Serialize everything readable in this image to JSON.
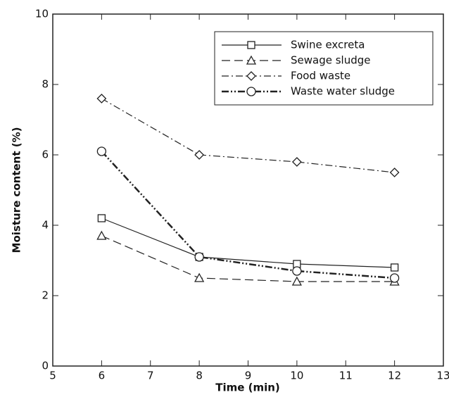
{
  "chart_data": {
    "type": "line",
    "x_label": "Time (min)",
    "y_label": "Moisture content (%)",
    "x": [
      6,
      8,
      10,
      12
    ],
    "series": [
      {
        "name": "Swine excreta",
        "color": "#222222",
        "marker": "square",
        "dash": "solid",
        "values": [
          4.2,
          3.1,
          2.9,
          2.8
        ]
      },
      {
        "name": "Sewage sludge",
        "color": "#222222",
        "marker": "triangle",
        "dash": "dashed",
        "values": [
          3.7,
          2.5,
          2.4,
          2.4
        ]
      },
      {
        "name": "Food waste",
        "color": "#222222",
        "marker": "diamond",
        "dash": "dashdot",
        "values": [
          7.6,
          6.0,
          5.8,
          5.5
        ]
      },
      {
        "name": "Waste water sludge",
        "color": "#222222",
        "marker": "circle",
        "dash": "dashdotdot",
        "values": [
          6.1,
          3.1,
          2.7,
          2.5
        ]
      }
    ],
    "xlim": [
      5,
      13
    ],
    "xticks": [
      5,
      6,
      7,
      8,
      9,
      10,
      11,
      12,
      13
    ],
    "ylim": [
      0,
      10
    ],
    "yticks": [
      0,
      2,
      4,
      6,
      8,
      10
    ],
    "legend": "upper right"
  }
}
